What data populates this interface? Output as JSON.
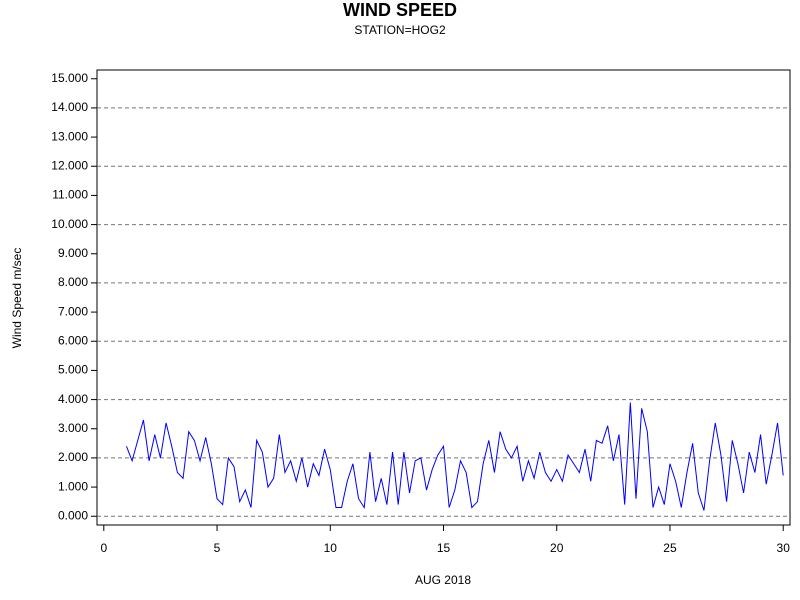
{
  "chart_data": {
    "type": "line",
    "title": "WIND SPEED",
    "subtitle": "STATION=HOG2",
    "x_label": "AUG 2018",
    "y_label": "Wind Speed m/sec",
    "xlim": [
      -0.3,
      30.3
    ],
    "xticks": [
      0,
      5,
      10,
      15,
      20,
      25,
      30
    ],
    "ylim": [
      -0.3,
      15.3
    ],
    "yticks": [
      {
        "value": 0,
        "label": "0.000"
      },
      {
        "value": 1,
        "label": "1.000"
      },
      {
        "value": 2,
        "label": "2.000"
      },
      {
        "value": 3,
        "label": "3.000"
      },
      {
        "value": 4,
        "label": "4.000"
      },
      {
        "value": 5,
        "label": "5.000"
      },
      {
        "value": 6,
        "label": "6.000"
      },
      {
        "value": 7,
        "label": "7.000"
      },
      {
        "value": 8,
        "label": "8.000"
      },
      {
        "value": 9,
        "label": "9.000"
      },
      {
        "value": 10,
        "label": "10.000"
      },
      {
        "value": 11,
        "label": "11.000"
      },
      {
        "value": 12,
        "label": "12.000"
      },
      {
        "value": 13,
        "label": "13.000"
      },
      {
        "value": 14,
        "label": "14.000"
      },
      {
        "value": 15,
        "label": "15.000"
      }
    ],
    "ygrid": [
      0,
      2,
      4,
      6,
      8,
      10,
      12,
      14
    ],
    "color": "#0000ff",
    "x": [
      1,
      1.25,
      1.5,
      1.75,
      2,
      2.25,
      2.5,
      2.75,
      3,
      3.25,
      3.5,
      3.75,
      4,
      4.25,
      4.5,
      4.75,
      5,
      5.25,
      5.5,
      5.75,
      6,
      6.25,
      6.5,
      6.75,
      7,
      7.25,
      7.5,
      7.75,
      8,
      8.25,
      8.5,
      8.75,
      9,
      9.25,
      9.5,
      9.75,
      10,
      10.25,
      10.5,
      10.75,
      11,
      11.25,
      11.5,
      11.75,
      12,
      12.25,
      12.5,
      12.75,
      13,
      13.25,
      13.5,
      13.75,
      14,
      14.25,
      14.5,
      14.75,
      15,
      15.25,
      15.5,
      15.75,
      16,
      16.25,
      16.5,
      16.75,
      17,
      17.25,
      17.5,
      17.75,
      18,
      18.25,
      18.5,
      18.75,
      19,
      19.25,
      19.5,
      19.75,
      20,
      20.25,
      20.5,
      20.75,
      21,
      21.25,
      21.5,
      21.75,
      22,
      22.25,
      22.5,
      22.75,
      23,
      23.25,
      23.5,
      23.75,
      24,
      24.25,
      24.5,
      24.75,
      25,
      25.25,
      25.5,
      25.75,
      26,
      26.25,
      26.5,
      26.75,
      27,
      27.25,
      27.5,
      27.75,
      28,
      28.25,
      28.5,
      28.75,
      29,
      29.25,
      29.5,
      29.75,
      30
    ],
    "values": [
      2.4,
      1.9,
      2.6,
      3.3,
      1.9,
      2.8,
      2.0,
      3.2,
      2.4,
      1.5,
      1.3,
      2.9,
      2.6,
      1.9,
      2.7,
      1.8,
      0.6,
      0.4,
      2.0,
      1.7,
      0.5,
      0.9,
      0.3,
      2.6,
      2.2,
      1.0,
      1.3,
      2.8,
      1.5,
      1.9,
      1.2,
      2.0,
      1.0,
      1.8,
      1.4,
      2.3,
      1.6,
      0.3,
      0.3,
      1.2,
      1.8,
      0.6,
      0.3,
      2.2,
      0.5,
      1.3,
      0.4,
      2.2,
      0.4,
      2.2,
      0.8,
      1.9,
      2.0,
      0.9,
      1.6,
      2.1,
      2.4,
      0.3,
      0.9,
      1.9,
      1.5,
      0.3,
      0.5,
      1.8,
      2.6,
      1.5,
      2.9,
      2.3,
      2.0,
      2.4,
      1.2,
      1.9,
      1.3,
      2.2,
      1.5,
      1.2,
      1.6,
      1.2,
      2.1,
      1.8,
      1.5,
      2.3,
      1.2,
      2.6,
      2.5,
      3.1,
      1.9,
      2.8,
      0.4,
      3.9,
      0.6,
      3.7,
      2.9,
      0.3,
      1.0,
      0.4,
      1.8,
      1.2,
      0.3,
      1.5,
      2.5,
      0.8,
      0.2,
      1.9,
      3.2,
      2.1,
      0.5,
      2.6,
      1.8,
      0.8,
      2.2,
      1.5,
      2.8,
      1.1,
      2.1,
      3.2,
      1.4
    ]
  }
}
